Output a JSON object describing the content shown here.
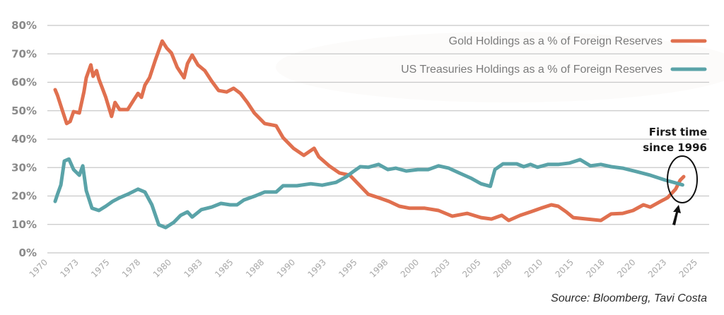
{
  "chart_data": {
    "type": "line",
    "title": "",
    "xlabel": "",
    "ylabel": "",
    "ylim": [
      0,
      80
    ],
    "y_ticks": [
      "0%",
      "10%",
      "20%",
      "30%",
      "40%",
      "50%",
      "60%",
      "70%",
      "80%"
    ],
    "x_tick_labels": [
      "1970",
      "1973",
      "1975",
      "1978",
      "1980",
      "1983",
      "1985",
      "1988",
      "1990",
      "1993",
      "1995",
      "1998",
      "2000",
      "2003",
      "2005",
      "2008",
      "2010",
      "2015",
      "2018",
      "2020",
      "2023",
      "2025"
    ],
    "xlim": [
      1970,
      2025
    ],
    "grid": true,
    "legend_position": "top-right",
    "series": [
      {
        "name": "Gold Holdings as a % of Foreign Reserves",
        "color": "#e0704f",
        "points": [
          [
            1970.0,
            57.4
          ],
          [
            1970.2,
            55.4
          ],
          [
            1970.6,
            50.4
          ],
          [
            1971.0,
            45.5
          ],
          [
            1971.3,
            46.2
          ],
          [
            1971.6,
            49.7
          ],
          [
            1972.1,
            49.2
          ],
          [
            1972.5,
            56.6
          ],
          [
            1972.7,
            61.6
          ],
          [
            1973.1,
            66.1
          ],
          [
            1973.3,
            62.1
          ],
          [
            1973.6,
            64.1
          ],
          [
            1973.8,
            61.1
          ],
          [
            1974.1,
            57.9
          ],
          [
            1974.4,
            54.7
          ],
          [
            1974.9,
            48.0
          ],
          [
            1975.2,
            52.9
          ],
          [
            1975.6,
            50.4
          ],
          [
            1976.3,
            50.4
          ],
          [
            1976.9,
            54.2
          ],
          [
            1977.2,
            56.1
          ],
          [
            1977.5,
            54.7
          ],
          [
            1977.8,
            59.0
          ],
          [
            1978.2,
            61.6
          ],
          [
            1978.7,
            67.8
          ],
          [
            1979.3,
            74.5
          ],
          [
            1979.7,
            72.0
          ],
          [
            1980.1,
            70.3
          ],
          [
            1980.6,
            65.3
          ],
          [
            1981.2,
            61.6
          ],
          [
            1981.5,
            66.6
          ],
          [
            1981.9,
            69.6
          ],
          [
            1982.4,
            66.1
          ],
          [
            1983.0,
            64.1
          ],
          [
            1983.6,
            60.4
          ],
          [
            1984.2,
            57.1
          ],
          [
            1984.9,
            56.6
          ],
          [
            1985.5,
            57.9
          ],
          [
            1986.1,
            56.1
          ],
          [
            1986.7,
            52.9
          ],
          [
            1987.3,
            49.2
          ],
          [
            1988.2,
            45.5
          ],
          [
            1989.2,
            44.7
          ],
          [
            1989.8,
            40.5
          ],
          [
            1990.7,
            36.8
          ],
          [
            1991.6,
            34.3
          ],
          [
            1992.5,
            36.8
          ],
          [
            1992.9,
            33.8
          ],
          [
            1993.8,
            30.6
          ],
          [
            1994.7,
            28.1
          ],
          [
            1995.6,
            27.3
          ],
          [
            1996.2,
            24.8
          ],
          [
            1997.2,
            20.6
          ],
          [
            1998.1,
            19.4
          ],
          [
            1999.0,
            18.1
          ],
          [
            1999.9,
            16.4
          ],
          [
            2000.8,
            15.7
          ],
          [
            2002.1,
            15.7
          ],
          [
            2003.3,
            14.9
          ],
          [
            2004.5,
            12.9
          ],
          [
            2005.8,
            13.9
          ],
          [
            2007.0,
            12.4
          ],
          [
            2007.9,
            11.9
          ],
          [
            2008.8,
            13.2
          ],
          [
            2009.4,
            11.4
          ],
          [
            2010.4,
            13.2
          ],
          [
            2011.3,
            14.4
          ],
          [
            2012.2,
            15.7
          ],
          [
            2013.1,
            16.9
          ],
          [
            2013.7,
            16.4
          ],
          [
            2014.4,
            14.4
          ],
          [
            2015.0,
            12.4
          ],
          [
            2016.2,
            11.9
          ],
          [
            2017.4,
            11.4
          ],
          [
            2018.3,
            13.7
          ],
          [
            2019.3,
            13.9
          ],
          [
            2020.2,
            14.9
          ],
          [
            2021.1,
            16.9
          ],
          [
            2021.7,
            16.1
          ],
          [
            2022.6,
            18.1
          ],
          [
            2023.2,
            19.4
          ],
          [
            2023.9,
            22.4
          ],
          [
            2024.3,
            25.6
          ],
          [
            2024.6,
            26.8
          ]
        ]
      },
      {
        "name": "US Treasuries Holdings as a % of Foreign Reserves",
        "color": "#5aa3a8",
        "points": [
          [
            1970.0,
            18.1
          ],
          [
            1970.2,
            20.6
          ],
          [
            1970.5,
            23.9
          ],
          [
            1970.8,
            32.3
          ],
          [
            1971.2,
            33.0
          ],
          [
            1971.6,
            29.3
          ],
          [
            1972.1,
            27.3
          ],
          [
            1972.4,
            30.6
          ],
          [
            1972.7,
            21.9
          ],
          [
            1973.2,
            15.7
          ],
          [
            1973.8,
            14.9
          ],
          [
            1974.4,
            16.4
          ],
          [
            1975.0,
            18.1
          ],
          [
            1975.6,
            19.4
          ],
          [
            1976.3,
            20.6
          ],
          [
            1977.2,
            22.4
          ],
          [
            1977.8,
            21.4
          ],
          [
            1978.4,
            16.9
          ],
          [
            1979.0,
            9.9
          ],
          [
            1979.6,
            8.9
          ],
          [
            1980.3,
            10.7
          ],
          [
            1980.9,
            13.2
          ],
          [
            1981.5,
            14.4
          ],
          [
            1981.9,
            12.6
          ],
          [
            1982.7,
            15.2
          ],
          [
            1983.6,
            16.1
          ],
          [
            1984.4,
            17.4
          ],
          [
            1985.2,
            16.9
          ],
          [
            1985.8,
            16.9
          ],
          [
            1986.4,
            18.6
          ],
          [
            1987.3,
            19.9
          ],
          [
            1988.2,
            21.4
          ],
          [
            1989.2,
            21.4
          ],
          [
            1989.8,
            23.6
          ],
          [
            1991.0,
            23.6
          ],
          [
            1992.2,
            24.3
          ],
          [
            1993.2,
            23.8
          ],
          [
            1994.4,
            24.8
          ],
          [
            1995.3,
            26.8
          ],
          [
            1995.9,
            28.6
          ],
          [
            1996.5,
            30.3
          ],
          [
            1997.2,
            30.1
          ],
          [
            1998.1,
            31.1
          ],
          [
            1998.9,
            29.3
          ],
          [
            1999.6,
            29.8
          ],
          [
            2000.5,
            28.8
          ],
          [
            2001.5,
            29.3
          ],
          [
            2002.4,
            29.3
          ],
          [
            2003.3,
            30.6
          ],
          [
            2004.2,
            29.8
          ],
          [
            2005.1,
            28.1
          ],
          [
            2006.1,
            26.3
          ],
          [
            2007.0,
            24.3
          ],
          [
            2007.8,
            23.4
          ],
          [
            2008.2,
            29.3
          ],
          [
            2008.9,
            31.3
          ],
          [
            2010.1,
            31.3
          ],
          [
            2010.7,
            30.3
          ],
          [
            2011.3,
            31.1
          ],
          [
            2011.9,
            30.1
          ],
          [
            2012.8,
            31.1
          ],
          [
            2013.7,
            31.1
          ],
          [
            2014.7,
            31.6
          ],
          [
            2015.6,
            32.8
          ],
          [
            2016.5,
            30.6
          ],
          [
            2017.4,
            31.1
          ],
          [
            2018.3,
            30.3
          ],
          [
            2019.3,
            29.8
          ],
          [
            2020.5,
            28.6
          ],
          [
            2021.7,
            27.3
          ],
          [
            2023.0,
            25.6
          ],
          [
            2023.9,
            24.6
          ],
          [
            2024.5,
            23.9
          ]
        ]
      }
    ],
    "annotations": [
      {
        "text_line1": "First time",
        "text_line2": "since 1996",
        "target_year": 2024.4
      }
    ]
  },
  "legend": {
    "gold_label": "Gold Holdings as a % of Foreign Reserves",
    "treasuries_label": "US Treasuries Holdings as a % of Foreign Reserves"
  },
  "annotation": {
    "line1": "First time",
    "line2": "since 1996"
  },
  "source": "Source: Bloomberg, Tavi Costa",
  "colors": {
    "gold": "#e0704f",
    "treasuries": "#5aa3a8",
    "grid": "#c8c8c8",
    "annotation": "#1a1a1a"
  }
}
